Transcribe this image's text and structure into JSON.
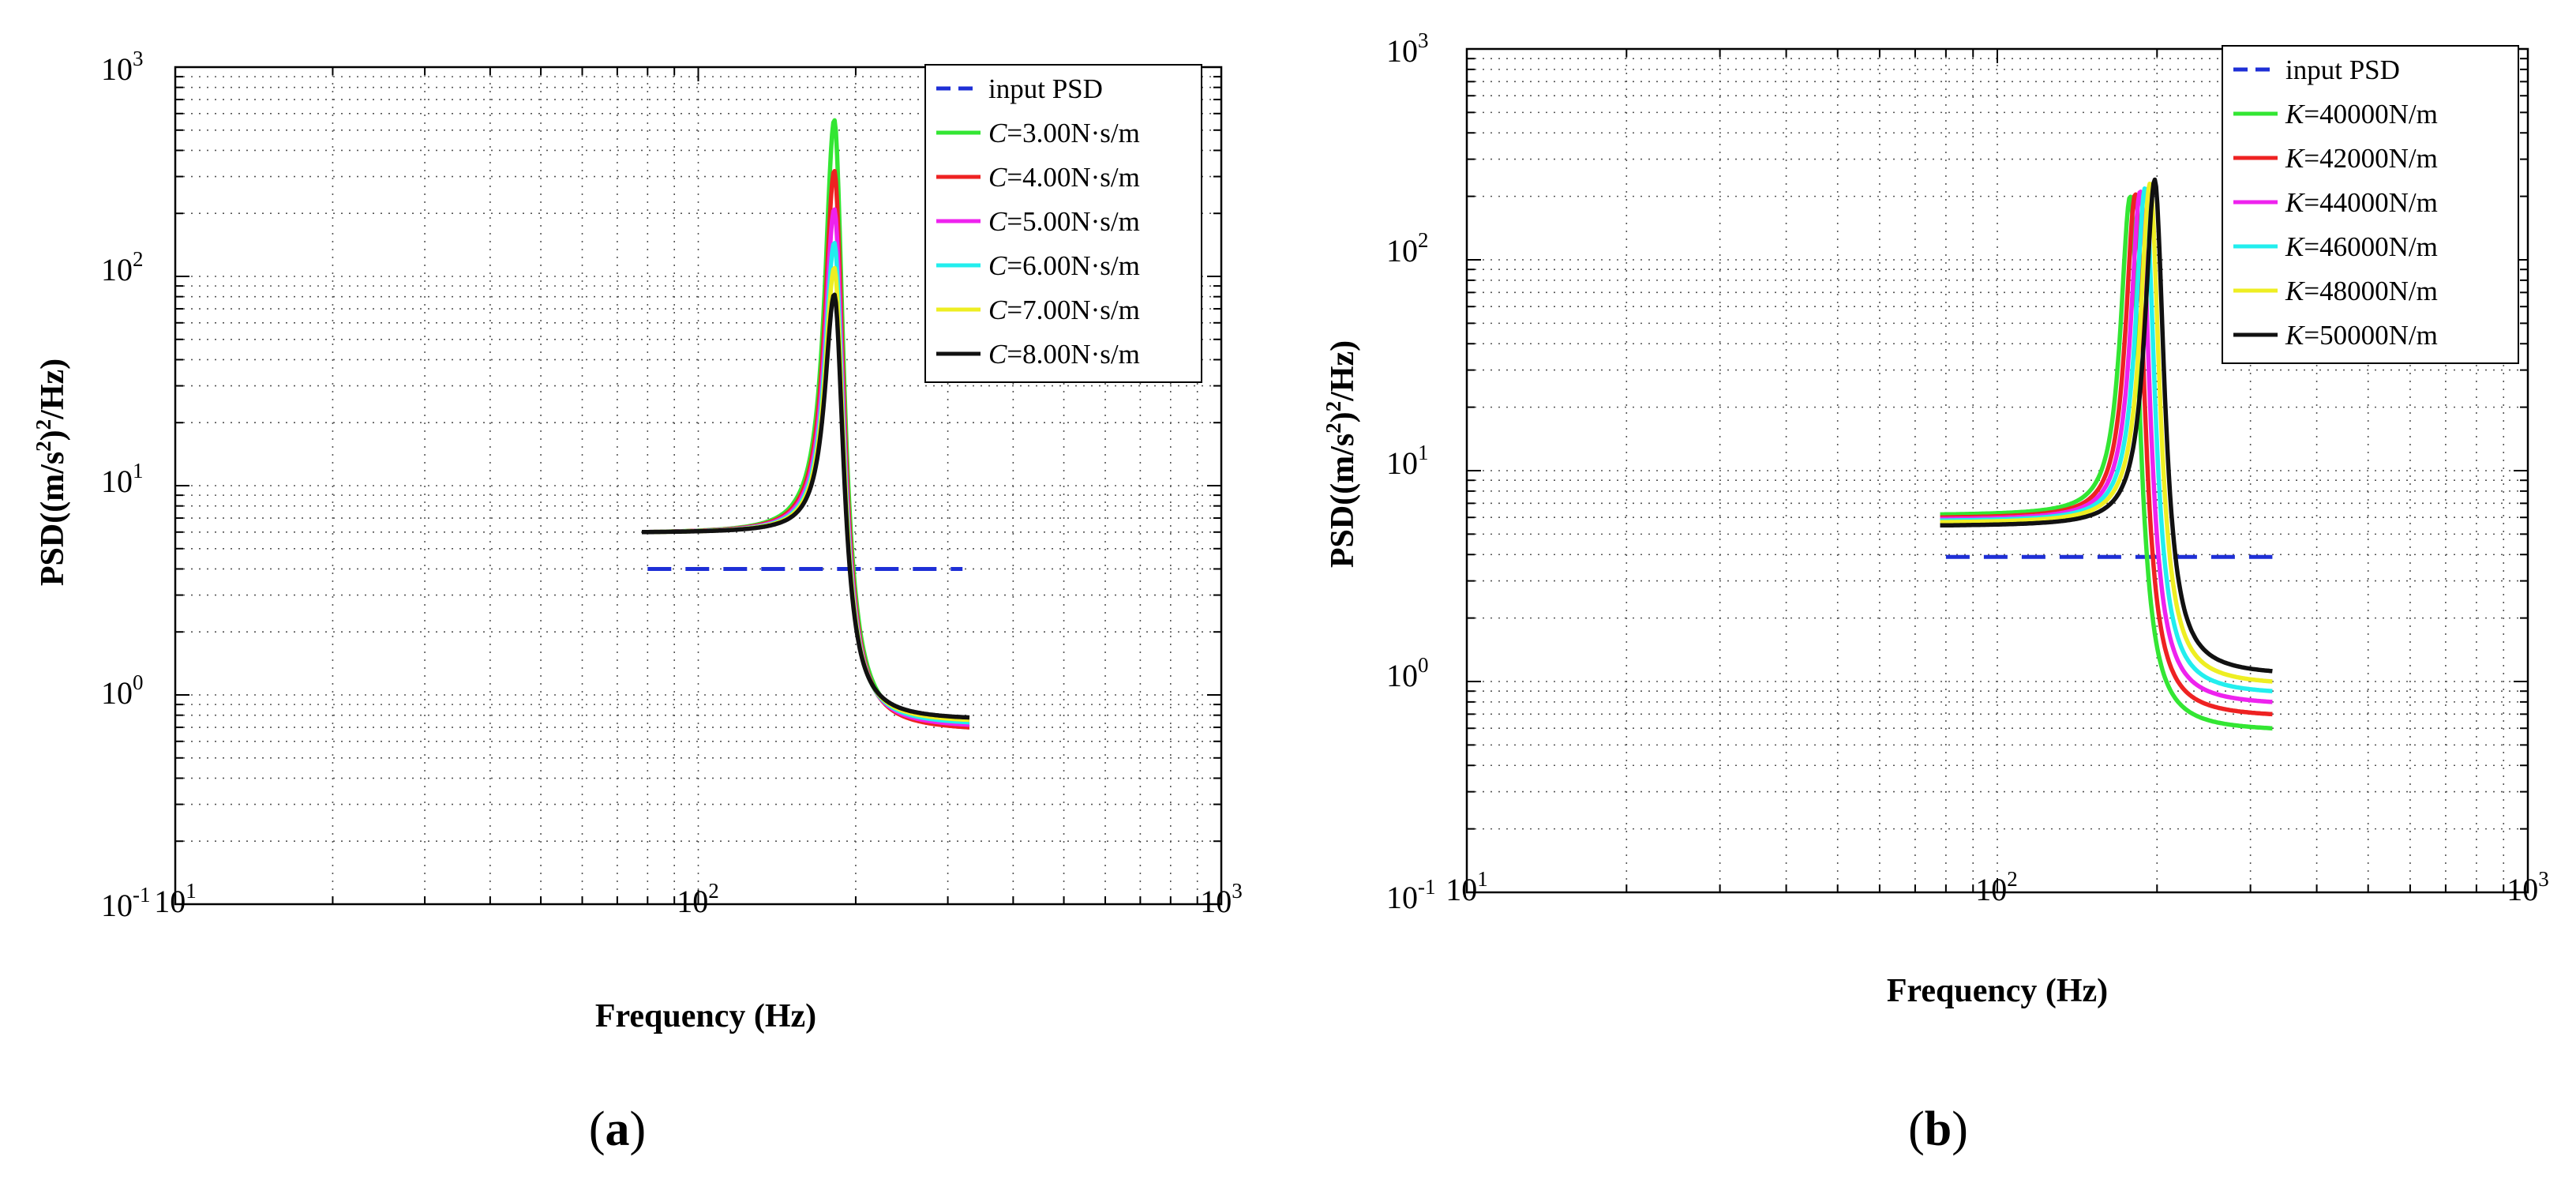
{
  "colors": {
    "input": "#1e2fd6",
    "grid": "#555555",
    "series": [
      "#33e633",
      "#ee2222",
      "#ee22ee",
      "#22eeee",
      "#eeee22",
      "#111111"
    ]
  },
  "chart_data": [
    {
      "type": "line",
      "panel_label": "(a)",
      "panel_label_parts": {
        "open": "(",
        "letter": "a",
        "close": ")"
      },
      "xlabel": "Frequency (Hz)",
      "ylabel": "PSD((m/s²)²/Hz)",
      "ylabel_parts": {
        "a": "PSD((m/s",
        "sup": "2",
        "b": ")",
        "sup2": "2",
        "c": "/Hz)"
      },
      "xscale": "log",
      "yscale": "log",
      "xlim": [
        10,
        1000
      ],
      "ylim": [
        0.1,
        1000
      ],
      "xtick_base": "10",
      "xtick_exps": [
        "1",
        "2",
        "3"
      ],
      "ytick_base": "10",
      "ytick_exps": [
        "-1",
        "0",
        "1",
        "2",
        "3"
      ],
      "grid": true,
      "legend_position": "top-right",
      "series": [
        {
          "name": "input  PSD",
          "label_var": "",
          "label_text": "input  PSD",
          "style": "dashed",
          "color_key": "input",
          "x": [
            80,
            320
          ],
          "y": [
            4.0,
            4.0
          ]
        },
        {
          "name": "C=3.00N·s/m",
          "label_var": "C",
          "label_text": "=3.00N·s/m",
          "color_idx": 0,
          "peak_freq": 182,
          "peak_value": 560,
          "x_range": [
            78,
            330
          ],
          "y_start": 6.0,
          "y_end": 0.7
        },
        {
          "name": "C=4.00N·s/m",
          "label_var": "C",
          "label_text": "=4.00N·s/m",
          "color_idx": 1,
          "peak_freq": 182,
          "peak_value": 320,
          "x_range": [
            78,
            330
          ],
          "y_start": 6.0,
          "y_end": 0.7
        },
        {
          "name": "C=5.00N·s/m",
          "label_var": "C",
          "label_text": "=5.00N·s/m",
          "color_idx": 2,
          "peak_freq": 182,
          "peak_value": 210,
          "x_range": [
            78,
            330
          ],
          "y_start": 6.0,
          "y_end": 0.72
        },
        {
          "name": "C=6.00N·s/m",
          "label_var": "C",
          "label_text": "=6.00N·s/m",
          "color_idx": 3,
          "peak_freq": 182,
          "peak_value": 145,
          "x_range": [
            78,
            330
          ],
          "y_start": 6.0,
          "y_end": 0.74
        },
        {
          "name": "C=7.00N·s/m",
          "label_var": "C",
          "label_text": "=7.00N·s/m",
          "color_idx": 4,
          "peak_freq": 182,
          "peak_value": 110,
          "x_range": [
            78,
            330
          ],
          "y_start": 6.0,
          "y_end": 0.76
        },
        {
          "name": "C=8.00N·s/m",
          "label_var": "C",
          "label_text": "=8.00N·s/m",
          "color_idx": 5,
          "peak_freq": 182,
          "peak_value": 82,
          "x_range": [
            78,
            330
          ],
          "y_start": 6.0,
          "y_end": 0.78
        }
      ]
    },
    {
      "type": "line",
      "panel_label": "(b)",
      "panel_label_parts": {
        "open": "(",
        "letter": "b",
        "close": ")"
      },
      "xlabel": "Frequency (Hz)",
      "ylabel": "PSD((m/s²)²/Hz)",
      "ylabel_parts": {
        "a": "PSD((m/s",
        "sup": "2",
        "b": ")",
        "sup2": "2",
        "c": "/Hz)"
      },
      "xscale": "log",
      "yscale": "log",
      "xlim": [
        10,
        1000
      ],
      "ylim": [
        0.1,
        1000
      ],
      "xtick_base": "10",
      "xtick_exps": [
        "1",
        "2",
        "3"
      ],
      "ytick_base": "10",
      "ytick_exps": [
        "-1",
        "0",
        "1",
        "2",
        "3"
      ],
      "grid": true,
      "legend_position": "top-right",
      "series": [
        {
          "name": "input  PSD",
          "label_var": "",
          "label_text": "input  PSD",
          "style": "dashed",
          "color_key": "input",
          "x": [
            80,
            330
          ],
          "y": [
            3.9,
            3.9
          ]
        },
        {
          "name": "K=40000N/m",
          "label_var": "K",
          "label_text": "=40000N/m",
          "color_idx": 0,
          "peak_freq": 178,
          "peak_value": 200,
          "x_range": [
            78,
            330
          ],
          "y_start": 6.2,
          "y_end": 0.6
        },
        {
          "name": "K=42000N/m",
          "label_var": "K",
          "label_text": "=42000N/m",
          "color_idx": 1,
          "peak_freq": 182,
          "peak_value": 205,
          "x_range": [
            78,
            330
          ],
          "y_start": 6.0,
          "y_end": 0.7
        },
        {
          "name": "K=44000N/m",
          "label_var": "K",
          "label_text": "=44000N/m",
          "color_idx": 2,
          "peak_freq": 186,
          "peak_value": 212,
          "x_range": [
            78,
            330
          ],
          "y_start": 5.9,
          "y_end": 0.8
        },
        {
          "name": "K=46000N/m",
          "label_var": "K",
          "label_text": "=46000N/m",
          "color_idx": 3,
          "peak_freq": 190,
          "peak_value": 220,
          "x_range": [
            78,
            330
          ],
          "y_start": 5.8,
          "y_end": 0.9
        },
        {
          "name": "K=48000N/m",
          "label_var": "K",
          "label_text": "=48000N/m",
          "color_idx": 4,
          "peak_freq": 194,
          "peak_value": 230,
          "x_range": [
            78,
            330
          ],
          "y_start": 5.7,
          "y_end": 1.0
        },
        {
          "name": "K=50000N/m",
          "label_var": "K",
          "label_text": "=50000N/m",
          "color_idx": 5,
          "peak_freq": 198,
          "peak_value": 240,
          "x_range": [
            78,
            330
          ],
          "y_start": 5.5,
          "y_end": 1.12
        }
      ]
    }
  ]
}
